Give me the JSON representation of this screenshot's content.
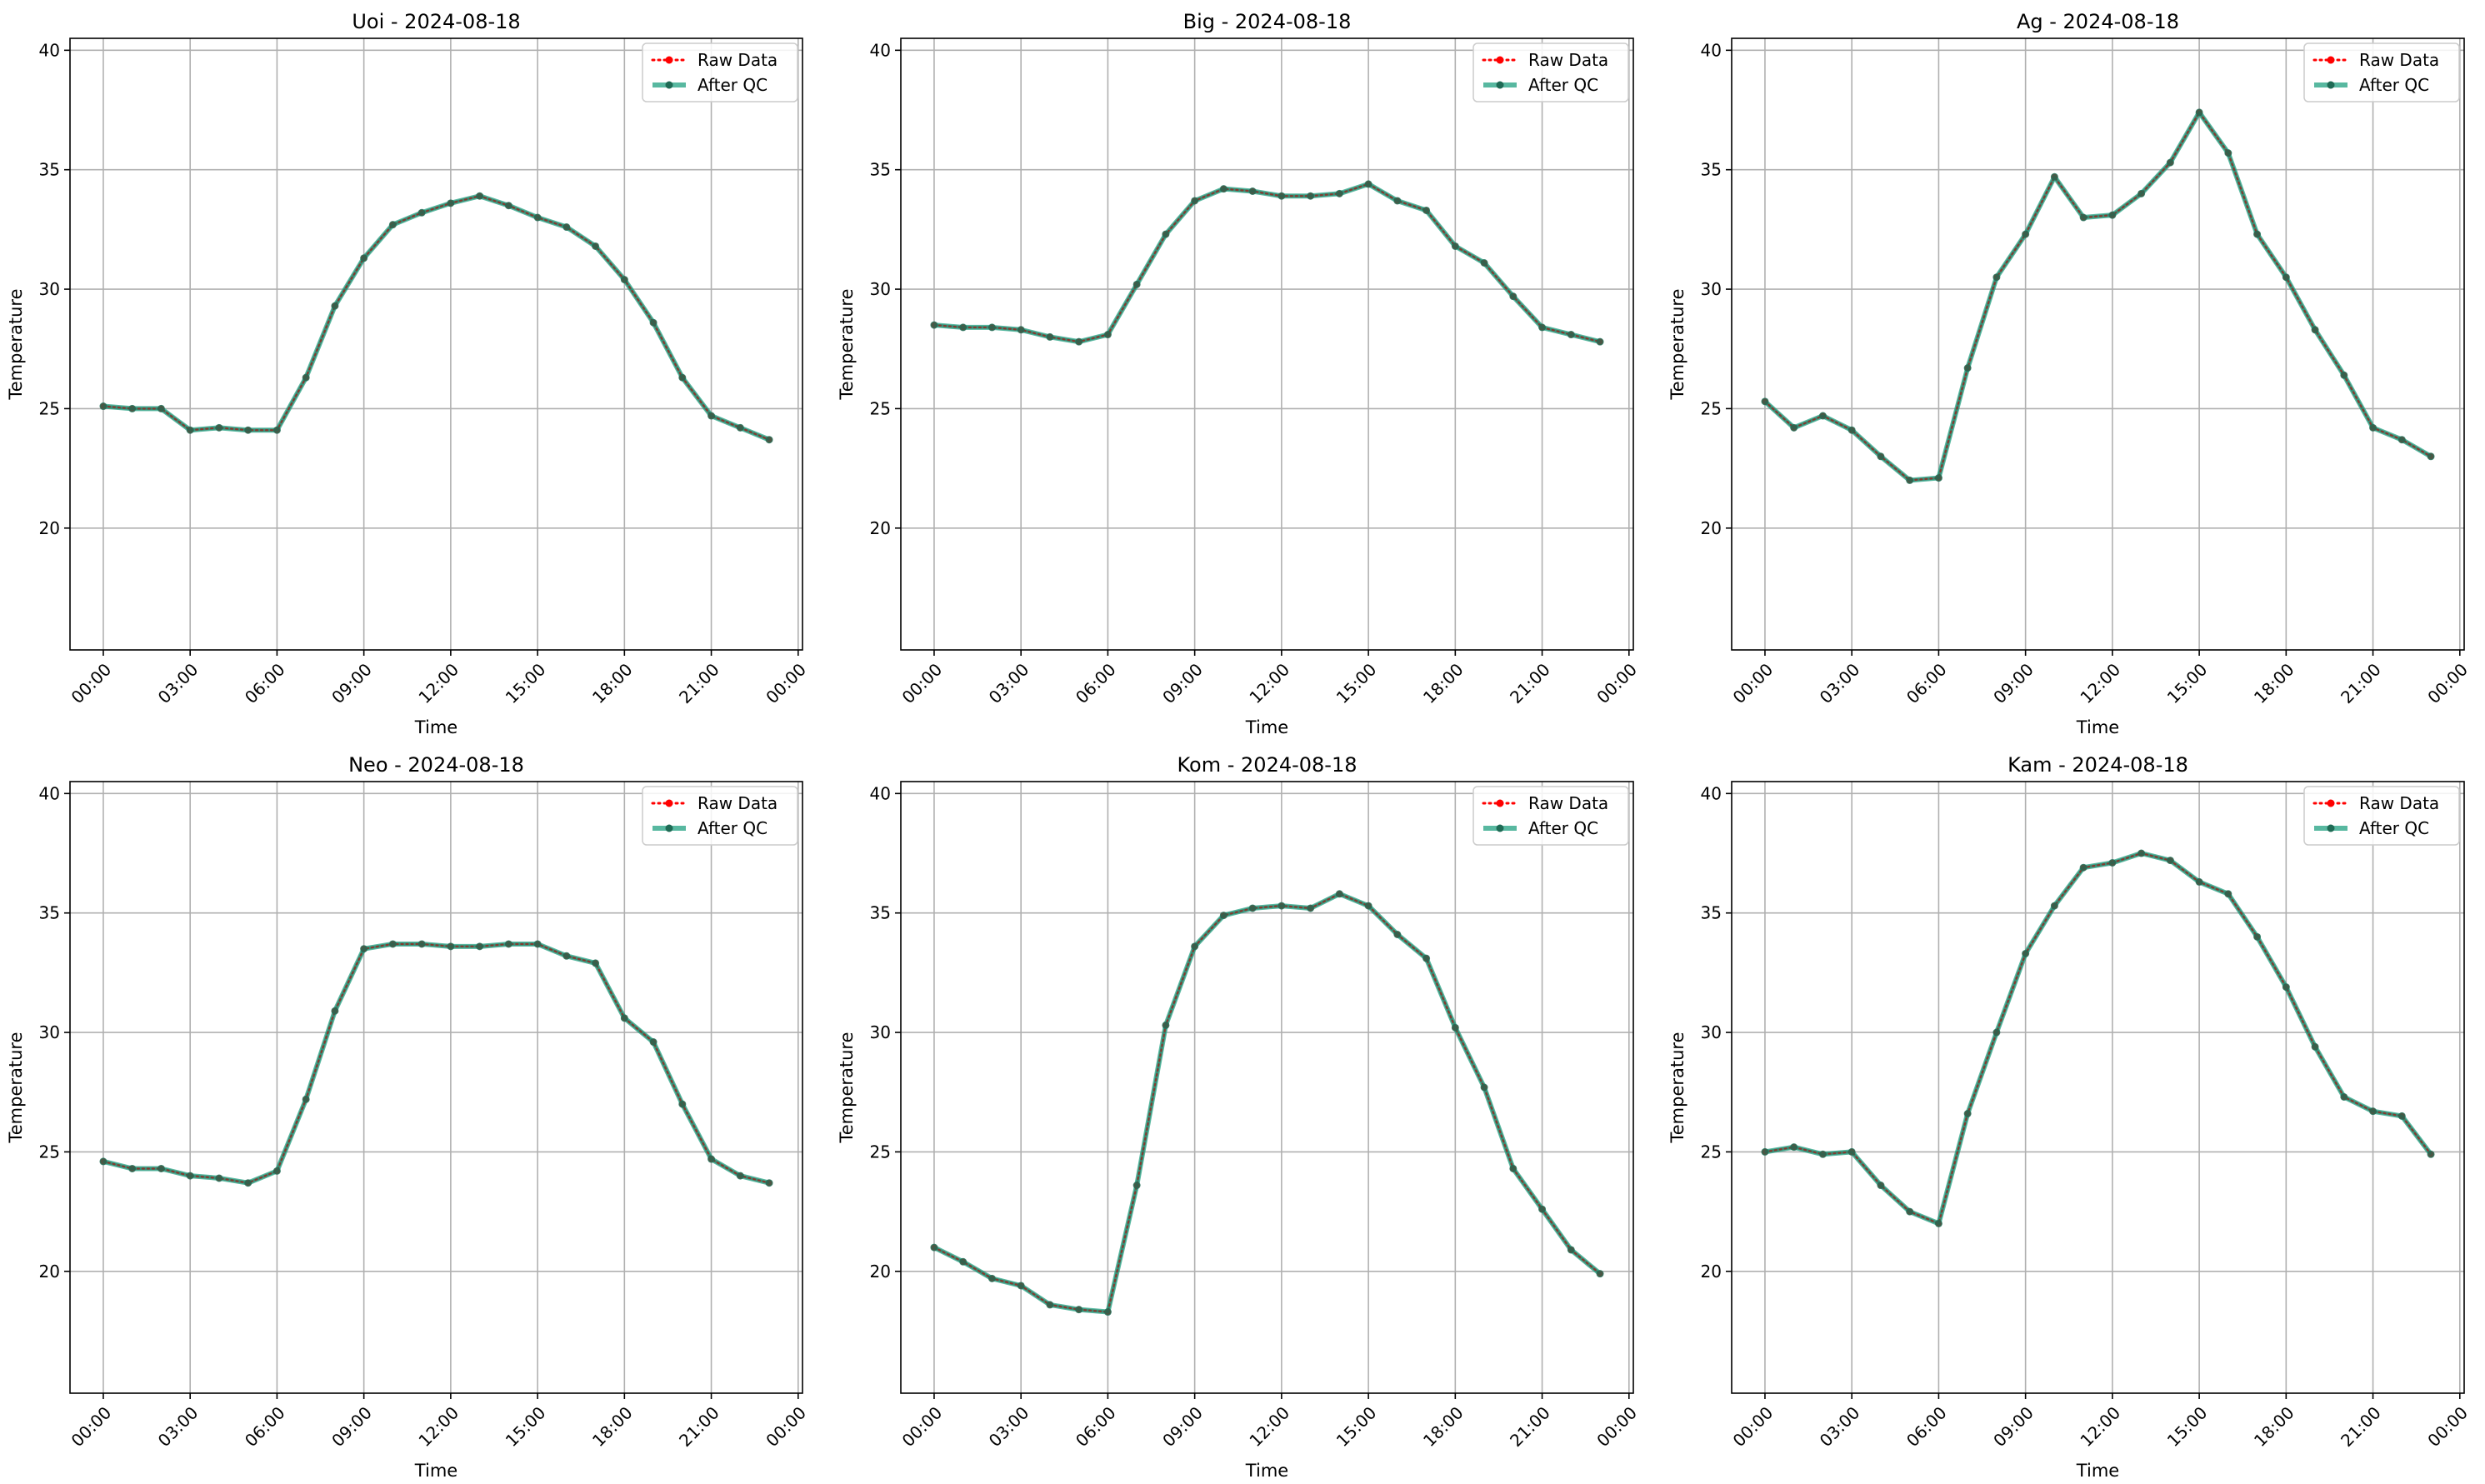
{
  "chart_data": [
    {
      "type": "line",
      "title": "Uoi - 2024-08-18",
      "xlabel": "Time",
      "ylabel": "Temperature",
      "x_ticks": [
        "00:00",
        "03:00",
        "06:00",
        "09:00",
        "12:00",
        "15:00",
        "18:00",
        "21:00",
        "00:00"
      ],
      "ylim": [
        14.9,
        40.5
      ],
      "y_ticks": [
        20,
        25,
        30,
        35,
        40
      ],
      "grid": true,
      "legend_position": "top-right",
      "x": [
        "00:00",
        "01:00",
        "02:00",
        "03:00",
        "04:00",
        "05:00",
        "06:00",
        "07:00",
        "08:00",
        "09:00",
        "10:00",
        "11:00",
        "12:00",
        "13:00",
        "14:00",
        "15:00",
        "16:00",
        "17:00",
        "18:00",
        "19:00",
        "20:00",
        "21:00",
        "22:00",
        "23:00"
      ],
      "series": [
        {
          "name": "Raw Data",
          "color": "#ff0000",
          "style": "dotted",
          "values": [
            25.1,
            25.0,
            25.0,
            24.1,
            24.2,
            24.1,
            24.1,
            26.3,
            29.3,
            31.3,
            32.7,
            33.2,
            33.6,
            33.9,
            33.5,
            33.0,
            32.6,
            31.8,
            30.4,
            28.6,
            26.3,
            24.7,
            24.2,
            23.7
          ]
        },
        {
          "name": "After QC",
          "color": "#20a080",
          "style": "solid",
          "values": [
            25.1,
            25.0,
            25.0,
            24.1,
            24.2,
            24.1,
            24.1,
            26.3,
            29.3,
            31.3,
            32.7,
            33.2,
            33.6,
            33.9,
            33.5,
            33.0,
            32.6,
            31.8,
            30.4,
            28.6,
            26.3,
            24.7,
            24.2,
            23.7
          ]
        }
      ]
    },
    {
      "type": "line",
      "title": "Big - 2024-08-18",
      "xlabel": "Time",
      "ylabel": "Temperature",
      "x_ticks": [
        "00:00",
        "03:00",
        "06:00",
        "09:00",
        "12:00",
        "15:00",
        "18:00",
        "21:00",
        "00:00"
      ],
      "ylim": [
        14.9,
        40.5
      ],
      "y_ticks": [
        20,
        25,
        30,
        35,
        40
      ],
      "grid": true,
      "legend_position": "top-right",
      "x": [
        "00:00",
        "01:00",
        "02:00",
        "03:00",
        "04:00",
        "05:00",
        "06:00",
        "07:00",
        "08:00",
        "09:00",
        "10:00",
        "11:00",
        "12:00",
        "13:00",
        "14:00",
        "15:00",
        "16:00",
        "17:00",
        "18:00",
        "19:00",
        "20:00",
        "21:00",
        "22:00",
        "23:00"
      ],
      "series": [
        {
          "name": "Raw Data",
          "color": "#ff0000",
          "style": "dotted",
          "values": [
            28.5,
            28.4,
            28.4,
            28.3,
            28.0,
            27.8,
            28.1,
            30.2,
            32.3,
            33.7,
            34.2,
            34.1,
            33.9,
            33.9,
            34.0,
            34.4,
            33.7,
            33.3,
            31.8,
            31.1,
            29.7,
            28.4,
            28.1,
            27.8
          ]
        },
        {
          "name": "After QC",
          "color": "#20a080",
          "style": "solid",
          "values": [
            28.5,
            28.4,
            28.4,
            28.3,
            28.0,
            27.8,
            28.1,
            30.2,
            32.3,
            33.7,
            34.2,
            34.1,
            33.9,
            33.9,
            34.0,
            34.4,
            33.7,
            33.3,
            31.8,
            31.1,
            29.7,
            28.4,
            28.1,
            27.8
          ]
        }
      ]
    },
    {
      "type": "line",
      "title": "Ag - 2024-08-18",
      "xlabel": "Time",
      "ylabel": "Temperature",
      "x_ticks": [
        "00:00",
        "03:00",
        "06:00",
        "09:00",
        "12:00",
        "15:00",
        "18:00",
        "21:00",
        "00:00"
      ],
      "ylim": [
        14.9,
        40.5
      ],
      "y_ticks": [
        20,
        25,
        30,
        35,
        40
      ],
      "grid": true,
      "legend_position": "top-right",
      "x": [
        "00:00",
        "01:00",
        "02:00",
        "03:00",
        "04:00",
        "05:00",
        "06:00",
        "07:00",
        "08:00",
        "09:00",
        "10:00",
        "11:00",
        "12:00",
        "13:00",
        "14:00",
        "15:00",
        "16:00",
        "17:00",
        "18:00",
        "19:00",
        "20:00",
        "21:00",
        "22:00",
        "23:00"
      ],
      "series": [
        {
          "name": "Raw Data",
          "color": "#ff0000",
          "style": "dotted",
          "values": [
            25.3,
            24.2,
            24.7,
            24.1,
            23.0,
            22.0,
            22.1,
            26.7,
            30.5,
            32.3,
            34.7,
            33.0,
            33.1,
            34.0,
            35.3,
            37.4,
            35.7,
            32.3,
            30.5,
            28.3,
            26.4,
            24.2,
            23.7,
            23.0
          ]
        },
        {
          "name": "After QC",
          "color": "#20a080",
          "style": "solid",
          "values": [
            25.3,
            24.2,
            24.7,
            24.1,
            23.0,
            22.0,
            22.1,
            26.7,
            30.5,
            32.3,
            34.7,
            33.0,
            33.1,
            34.0,
            35.3,
            37.4,
            35.7,
            32.3,
            30.5,
            28.3,
            26.4,
            24.2,
            23.7,
            23.0
          ]
        }
      ]
    },
    {
      "type": "line",
      "title": "Neo - 2024-08-18",
      "xlabel": "Time",
      "ylabel": "Temperature",
      "x_ticks": [
        "00:00",
        "03:00",
        "06:00",
        "09:00",
        "12:00",
        "15:00",
        "18:00",
        "21:00",
        "00:00"
      ],
      "ylim": [
        14.9,
        40.5
      ],
      "y_ticks": [
        20,
        25,
        30,
        35,
        40
      ],
      "grid": true,
      "legend_position": "top-right",
      "x": [
        "00:00",
        "01:00",
        "02:00",
        "03:00",
        "04:00",
        "05:00",
        "06:00",
        "07:00",
        "08:00",
        "09:00",
        "10:00",
        "11:00",
        "12:00",
        "13:00",
        "14:00",
        "15:00",
        "16:00",
        "17:00",
        "18:00",
        "19:00",
        "20:00",
        "21:00",
        "22:00",
        "23:00"
      ],
      "series": [
        {
          "name": "Raw Data",
          "color": "#ff0000",
          "style": "dotted",
          "values": [
            24.6,
            24.3,
            24.3,
            24.0,
            23.9,
            23.7,
            24.2,
            27.2,
            30.9,
            33.5,
            33.7,
            33.7,
            33.6,
            33.6,
            33.7,
            33.7,
            33.2,
            32.9,
            30.6,
            29.6,
            27.0,
            24.7,
            24.0,
            23.7
          ]
        },
        {
          "name": "After QC",
          "color": "#20a080",
          "style": "solid",
          "values": [
            24.6,
            24.3,
            24.3,
            24.0,
            23.9,
            23.7,
            24.2,
            27.2,
            30.9,
            33.5,
            33.7,
            33.7,
            33.6,
            33.6,
            33.7,
            33.7,
            33.2,
            32.9,
            30.6,
            29.6,
            27.0,
            24.7,
            24.0,
            23.7
          ]
        }
      ]
    },
    {
      "type": "line",
      "title": "Kom - 2024-08-18",
      "xlabel": "Time",
      "ylabel": "Temperature",
      "x_ticks": [
        "00:00",
        "03:00",
        "06:00",
        "09:00",
        "12:00",
        "15:00",
        "18:00",
        "21:00",
        "00:00"
      ],
      "ylim": [
        14.9,
        40.5
      ],
      "y_ticks": [
        20,
        25,
        30,
        35,
        40
      ],
      "grid": true,
      "legend_position": "top-right",
      "x": [
        "00:00",
        "01:00",
        "02:00",
        "03:00",
        "04:00",
        "05:00",
        "06:00",
        "07:00",
        "08:00",
        "09:00",
        "10:00",
        "11:00",
        "12:00",
        "13:00",
        "14:00",
        "15:00",
        "16:00",
        "17:00",
        "18:00",
        "19:00",
        "20:00",
        "21:00",
        "22:00",
        "23:00"
      ],
      "series": [
        {
          "name": "Raw Data",
          "color": "#ff0000",
          "style": "dotted",
          "values": [
            21.0,
            20.4,
            19.7,
            19.4,
            18.6,
            18.4,
            18.3,
            23.6,
            30.3,
            33.6,
            34.9,
            35.2,
            35.3,
            35.2,
            35.8,
            35.3,
            34.1,
            33.1,
            30.2,
            27.7,
            24.3,
            22.6,
            20.9,
            19.9
          ]
        },
        {
          "name": "After QC",
          "color": "#20a080",
          "style": "solid",
          "values": [
            21.0,
            20.4,
            19.7,
            19.4,
            18.6,
            18.4,
            18.3,
            23.6,
            30.3,
            33.6,
            34.9,
            35.2,
            35.3,
            35.2,
            35.8,
            35.3,
            34.1,
            33.1,
            30.2,
            27.7,
            24.3,
            22.6,
            20.9,
            19.9
          ]
        }
      ]
    },
    {
      "type": "line",
      "title": "Kam - 2024-08-18",
      "xlabel": "Time",
      "ylabel": "Temperature",
      "x_ticks": [
        "00:00",
        "03:00",
        "06:00",
        "09:00",
        "12:00",
        "15:00",
        "18:00",
        "21:00",
        "00:00"
      ],
      "ylim": [
        14.9,
        40.5
      ],
      "y_ticks": [
        20,
        25,
        30,
        35,
        40
      ],
      "grid": true,
      "legend_position": "top-right",
      "x": [
        "00:00",
        "01:00",
        "02:00",
        "03:00",
        "04:00",
        "05:00",
        "06:00",
        "07:00",
        "08:00",
        "09:00",
        "10:00",
        "11:00",
        "12:00",
        "13:00",
        "14:00",
        "15:00",
        "16:00",
        "17:00",
        "18:00",
        "19:00",
        "20:00",
        "21:00",
        "22:00",
        "23:00"
      ],
      "series": [
        {
          "name": "Raw Data",
          "color": "#ff0000",
          "style": "dotted",
          "values": [
            25.0,
            25.2,
            24.9,
            25.0,
            23.6,
            22.5,
            22.0,
            26.6,
            30.0,
            33.3,
            35.3,
            36.9,
            37.1,
            37.5,
            37.2,
            36.3,
            35.8,
            34.0,
            31.9,
            29.4,
            27.3,
            26.7,
            26.5,
            24.9
          ]
        },
        {
          "name": "After QC",
          "color": "#20a080",
          "style": "solid",
          "values": [
            25.0,
            25.2,
            24.9,
            25.0,
            23.6,
            22.5,
            22.0,
            26.6,
            30.0,
            33.3,
            35.3,
            36.9,
            37.1,
            37.5,
            37.2,
            36.3,
            35.8,
            34.0,
            31.9,
            29.4,
            27.3,
            26.7,
            26.5,
            24.9
          ]
        }
      ]
    }
  ]
}
